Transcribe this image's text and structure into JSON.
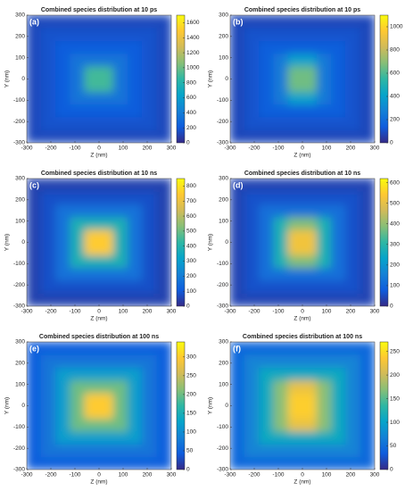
{
  "chart_data": [
    {
      "type": "heatmap",
      "panel_label": "(a)",
      "title": "Combined species distribution at 10 ps",
      "xlabel": "Z (nm)",
      "ylabel": "Y (nm)",
      "xlim": [
        -300,
        300
      ],
      "ylim": [
        -300,
        300
      ],
      "xticks": [
        -300,
        -200,
        -100,
        0,
        100,
        200,
        300
      ],
      "yticks": [
        -300,
        -200,
        -100,
        0,
        100,
        200,
        300
      ],
      "zlim": [
        0,
        1700
      ],
      "zticks": [
        0,
        200,
        400,
        600,
        800,
        1000,
        1200,
        1400,
        1600
      ],
      "colormap": [
        "#352a87",
        "#0f5cdd",
        "#1481d6",
        "#06a4ca",
        "#2eb7a4",
        "#87bf77",
        "#d1bb59",
        "#fec832",
        "#f9fb0e"
      ],
      "x": [
        -270,
        -210,
        -150,
        -90,
        -30,
        30,
        90,
        150,
        210,
        270
      ],
      "y": [
        -270,
        -210,
        -150,
        -90,
        -30,
        30,
        90,
        150,
        210,
        270
      ],
      "z": [
        [
          130,
          130,
          130,
          130,
          130,
          130,
          130,
          130,
          130,
          130
        ],
        [
          130,
          170,
          170,
          170,
          170,
          170,
          170,
          170,
          170,
          130
        ],
        [
          130,
          170,
          220,
          220,
          220,
          220,
          220,
          220,
          170,
          130
        ],
        [
          130,
          170,
          220,
          350,
          350,
          350,
          350,
          220,
          170,
          130
        ],
        [
          130,
          170,
          220,
          350,
          900,
          900,
          350,
          220,
          170,
          130
        ],
        [
          130,
          170,
          220,
          350,
          900,
          900,
          350,
          220,
          170,
          130
        ],
        [
          130,
          170,
          220,
          350,
          350,
          350,
          350,
          220,
          170,
          130
        ],
        [
          130,
          170,
          220,
          220,
          220,
          220,
          220,
          220,
          170,
          130
        ],
        [
          130,
          170,
          170,
          170,
          170,
          170,
          170,
          170,
          170,
          130
        ],
        [
          130,
          130,
          130,
          130,
          130,
          130,
          130,
          130,
          130,
          130
        ]
      ]
    },
    {
      "type": "heatmap",
      "panel_label": "(b)",
      "title": "Combined species distribution at 10 ps",
      "xlabel": "Z (nm)",
      "ylabel": "Y (nm)",
      "xlim": [
        -300,
        300
      ],
      "ylim": [
        -300,
        300
      ],
      "xticks": [
        -300,
        -200,
        -100,
        0,
        100,
        200,
        300
      ],
      "yticks": [
        -300,
        -200,
        -100,
        0,
        100,
        200,
        300
      ],
      "zlim": [
        0,
        1100
      ],
      "zticks": [
        0,
        200,
        400,
        600,
        800,
        1000
      ],
      "colormap": [
        "#352a87",
        "#0f5cdd",
        "#1481d6",
        "#06a4ca",
        "#2eb7a4",
        "#87bf77",
        "#d1bb59",
        "#fec832",
        "#f9fb0e"
      ],
      "x": [
        -270,
        -210,
        -150,
        -90,
        -30,
        30,
        90,
        150,
        210,
        270
      ],
      "y": [
        -270,
        -210,
        -150,
        -90,
        -30,
        30,
        90,
        150,
        210,
        270
      ],
      "z": [
        [
          80,
          80,
          80,
          80,
          80,
          80,
          80,
          80,
          80,
          80
        ],
        [
          80,
          110,
          110,
          110,
          110,
          110,
          110,
          110,
          110,
          80
        ],
        [
          80,
          110,
          150,
          150,
          150,
          150,
          150,
          150,
          110,
          80
        ],
        [
          80,
          110,
          150,
          250,
          400,
          400,
          250,
          150,
          110,
          80
        ],
        [
          80,
          110,
          150,
          250,
          650,
          650,
          250,
          150,
          110,
          80
        ],
        [
          80,
          110,
          150,
          250,
          650,
          650,
          250,
          150,
          110,
          80
        ],
        [
          80,
          110,
          150,
          250,
          400,
          400,
          250,
          150,
          110,
          80
        ],
        [
          80,
          110,
          150,
          150,
          150,
          150,
          150,
          150,
          110,
          80
        ],
        [
          80,
          110,
          110,
          110,
          110,
          110,
          110,
          110,
          110,
          80
        ],
        [
          80,
          80,
          80,
          80,
          80,
          80,
          80,
          80,
          80,
          80
        ]
      ]
    },
    {
      "type": "heatmap",
      "panel_label": "(c)",
      "title": "Combined species distribution at 10 ns",
      "xlabel": "Z (nm)",
      "ylabel": "Y (nm)",
      "xlim": [
        -300,
        300
      ],
      "ylim": [
        -300,
        300
      ],
      "xticks": [
        -300,
        -200,
        -100,
        0,
        100,
        200,
        300
      ],
      "yticks": [
        -300,
        -200,
        -100,
        0,
        100,
        200,
        300
      ],
      "zlim": [
        0,
        850
      ],
      "zticks": [
        0,
        100,
        200,
        300,
        400,
        500,
        600,
        700,
        800
      ],
      "colormap": [
        "#352a87",
        "#0f5cdd",
        "#1481d6",
        "#06a4ca",
        "#2eb7a4",
        "#87bf77",
        "#d1bb59",
        "#fec832",
        "#f9fb0e"
      ],
      "x": [
        -270,
        -210,
        -150,
        -90,
        -30,
        30,
        90,
        150,
        210,
        270
      ],
      "y": [
        -270,
        -210,
        -150,
        -90,
        -30,
        30,
        90,
        150,
        210,
        270
      ],
      "z": [
        [
          50,
          50,
          50,
          50,
          50,
          50,
          50,
          50,
          50,
          50
        ],
        [
          50,
          80,
          80,
          80,
          80,
          80,
          80,
          80,
          80,
          50
        ],
        [
          50,
          80,
          170,
          170,
          170,
          170,
          170,
          170,
          80,
          50
        ],
        [
          50,
          80,
          170,
          380,
          380,
          380,
          380,
          170,
          80,
          50
        ],
        [
          50,
          80,
          170,
          380,
          750,
          750,
          380,
          170,
          80,
          50
        ],
        [
          50,
          80,
          170,
          380,
          750,
          750,
          380,
          170,
          80,
          50
        ],
        [
          50,
          80,
          170,
          380,
          380,
          380,
          380,
          170,
          80,
          50
        ],
        [
          50,
          80,
          170,
          170,
          170,
          170,
          170,
          170,
          80,
          50
        ],
        [
          50,
          80,
          80,
          80,
          80,
          80,
          80,
          80,
          80,
          50
        ],
        [
          50,
          50,
          50,
          50,
          50,
          50,
          50,
          50,
          50,
          50
        ]
      ]
    },
    {
      "type": "heatmap",
      "panel_label": "(d)",
      "title": "Combined species distribution at 10 ns",
      "xlabel": "Z (nm)",
      "ylabel": "Y (nm)",
      "xlim": [
        -300,
        300
      ],
      "ylim": [
        -300,
        300
      ],
      "xticks": [
        -300,
        -200,
        -100,
        0,
        100,
        200,
        300
      ],
      "yticks": [
        -300,
        -200,
        -100,
        0,
        100,
        200,
        300
      ],
      "zlim": [
        0,
        620
      ],
      "zticks": [
        0,
        100,
        200,
        300,
        400,
        500,
        600
      ],
      "colormap": [
        "#352a87",
        "#0f5cdd",
        "#1481d6",
        "#06a4ca",
        "#2eb7a4",
        "#87bf77",
        "#d1bb59",
        "#fec832",
        "#f9fb0e"
      ],
      "x": [
        -270,
        -210,
        -150,
        -90,
        -30,
        30,
        90,
        150,
        210,
        270
      ],
      "y": [
        -270,
        -210,
        -150,
        -90,
        -30,
        30,
        90,
        150,
        210,
        270
      ],
      "z": [
        [
          40,
          40,
          40,
          40,
          40,
          40,
          40,
          40,
          40,
          40
        ],
        [
          40,
          60,
          60,
          60,
          60,
          60,
          60,
          60,
          60,
          40
        ],
        [
          40,
          60,
          120,
          120,
          120,
          120,
          120,
          120,
          60,
          40
        ],
        [
          40,
          60,
          120,
          280,
          380,
          380,
          280,
          120,
          60,
          40
        ],
        [
          40,
          60,
          120,
          280,
          520,
          520,
          280,
          120,
          60,
          40
        ],
        [
          40,
          60,
          120,
          280,
          520,
          520,
          280,
          120,
          60,
          40
        ],
        [
          40,
          60,
          120,
          280,
          380,
          380,
          280,
          120,
          60,
          40
        ],
        [
          40,
          60,
          120,
          120,
          120,
          120,
          120,
          120,
          60,
          40
        ],
        [
          40,
          60,
          60,
          60,
          60,
          60,
          60,
          60,
          60,
          40
        ],
        [
          40,
          40,
          40,
          40,
          40,
          40,
          40,
          40,
          40,
          40
        ]
      ]
    },
    {
      "type": "heatmap",
      "panel_label": "(e)",
      "title": "Combined species distribution at 100 ns",
      "xlabel": "Z (nm)",
      "ylabel": "Y (nm)",
      "xlim": [
        -300,
        300
      ],
      "ylim": [
        -300,
        300
      ],
      "xticks": [
        -300,
        -200,
        -100,
        0,
        100,
        200,
        300
      ],
      "yticks": [
        -300,
        -200,
        -100,
        0,
        100,
        200,
        300
      ],
      "zlim": [
        0,
        340
      ],
      "zticks": [
        0,
        50,
        100,
        150,
        200,
        250,
        300
      ],
      "colormap": [
        "#352a87",
        "#0f5cdd",
        "#1481d6",
        "#06a4ca",
        "#2eb7a4",
        "#87bf77",
        "#d1bb59",
        "#fec832",
        "#f9fb0e"
      ],
      "x": [
        -270,
        -210,
        -150,
        -90,
        -30,
        30,
        90,
        150,
        210,
        270
      ],
      "y": [
        -270,
        -210,
        -150,
        -90,
        -30,
        30,
        90,
        150,
        210,
        270
      ],
      "z": [
        [
          45,
          45,
          45,
          45,
          45,
          45,
          45,
          45,
          45,
          45
        ],
        [
          45,
          70,
          70,
          70,
          70,
          70,
          70,
          70,
          70,
          45
        ],
        [
          45,
          70,
          120,
          120,
          120,
          120,
          120,
          120,
          70,
          45
        ],
        [
          45,
          70,
          120,
          200,
          200,
          200,
          200,
          120,
          70,
          45
        ],
        [
          45,
          70,
          120,
          200,
          300,
          300,
          200,
          120,
          70,
          45
        ],
        [
          45,
          70,
          120,
          200,
          300,
          300,
          200,
          120,
          70,
          45
        ],
        [
          45,
          70,
          120,
          200,
          200,
          200,
          200,
          120,
          70,
          45
        ],
        [
          45,
          70,
          120,
          120,
          120,
          120,
          120,
          120,
          70,
          45
        ],
        [
          45,
          70,
          70,
          70,
          70,
          70,
          70,
          70,
          70,
          45
        ],
        [
          45,
          45,
          45,
          45,
          45,
          45,
          45,
          45,
          45,
          45
        ]
      ]
    },
    {
      "type": "heatmap",
      "panel_label": "(f)",
      "title": "Combined species distribution at 100 ns",
      "xlabel": "Z (nm)",
      "ylabel": "Y (nm)",
      "xlim": [
        -300,
        300
      ],
      "ylim": [
        -300,
        300
      ],
      "xticks": [
        -300,
        -200,
        -100,
        0,
        100,
        200,
        300
      ],
      "yticks": [
        -300,
        -200,
        -100,
        0,
        100,
        200,
        300
      ],
      "zlim": [
        0,
        270
      ],
      "zticks": [
        0,
        50,
        100,
        150,
        200,
        250
      ],
      "colormap": [
        "#352a87",
        "#0f5cdd",
        "#1481d6",
        "#06a4ca",
        "#2eb7a4",
        "#87bf77",
        "#d1bb59",
        "#fec832",
        "#f9fb0e"
      ],
      "x": [
        -270,
        -210,
        -150,
        -90,
        -30,
        30,
        90,
        150,
        210,
        270
      ],
      "y": [
        -270,
        -210,
        -150,
        -90,
        -30,
        30,
        90,
        150,
        210,
        270
      ],
      "z": [
        [
          45,
          45,
          45,
          45,
          45,
          45,
          45,
          45,
          45,
          45
        ],
        [
          45,
          70,
          70,
          70,
          70,
          70,
          70,
          70,
          70,
          45
        ],
        [
          45,
          70,
          110,
          110,
          110,
          110,
          110,
          110,
          70,
          45
        ],
        [
          45,
          70,
          110,
          170,
          220,
          220,
          170,
          110,
          70,
          45
        ],
        [
          45,
          70,
          110,
          170,
          240,
          240,
          170,
          110,
          70,
          45
        ],
        [
          45,
          70,
          110,
          170,
          240,
          240,
          170,
          110,
          70,
          45
        ],
        [
          45,
          70,
          110,
          170,
          220,
          220,
          170,
          110,
          70,
          45
        ],
        [
          45,
          70,
          110,
          110,
          110,
          110,
          110,
          110,
          70,
          45
        ],
        [
          45,
          70,
          70,
          70,
          70,
          70,
          70,
          70,
          70,
          45
        ],
        [
          45,
          45,
          45,
          45,
          45,
          45,
          45,
          45,
          45,
          45
        ]
      ]
    }
  ]
}
